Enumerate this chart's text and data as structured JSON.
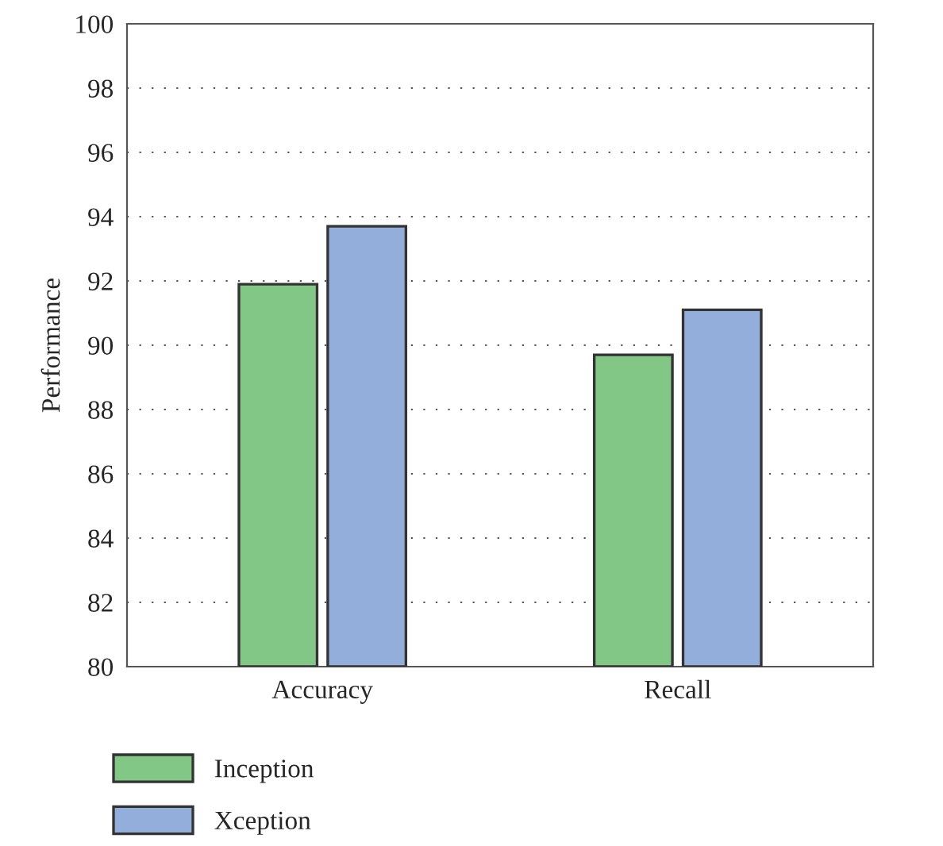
{
  "chart_data": {
    "type": "bar",
    "ylabel": "Performance",
    "categories": [
      "Accuracy",
      "Recall"
    ],
    "series": [
      {
        "name": "Inception",
        "color": "#82c785",
        "values": [
          91.9,
          89.7
        ]
      },
      {
        "name": "Xception",
        "color": "#93aedb",
        "values": [
          93.7,
          91.1
        ]
      }
    ],
    "ylim": [
      80,
      100
    ],
    "yticks": [
      80,
      82,
      84,
      86,
      88,
      90,
      92,
      94,
      96,
      98,
      100
    ],
    "grid": "y",
    "legend": "bottom left"
  }
}
